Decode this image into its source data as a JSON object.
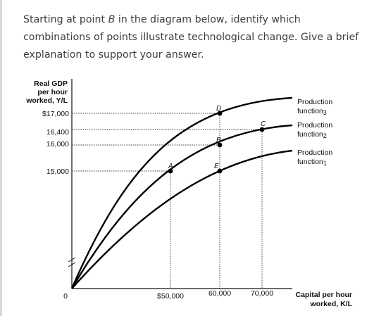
{
  "question": {
    "before": "Starting at point ",
    "point": "B",
    "after": " in the diagram below, identify which combinations of points illustrate technological change. Give a brief explanation to support your answer."
  },
  "diagram": {
    "y_axis": {
      "title_line1": "Real GDP",
      "title_line2": "per hour",
      "title_line3": "worked, Y/L",
      "ticks": [
        "$17,000",
        "16,400",
        "16,000",
        "15,000"
      ]
    },
    "x_axis": {
      "origin": "0",
      "ticks": [
        "$50,000",
        "60,000",
        "70,000"
      ],
      "title_line1": "Capital per hour",
      "title_line2": "worked, K/L"
    },
    "points": [
      "A",
      "B",
      "C",
      "D",
      "E"
    ],
    "curves": [
      {
        "name": "Production function3",
        "label_line1": "Production",
        "label_line2": "function",
        "subscript": "3"
      },
      {
        "name": "Production function2",
        "label_line1": "Production",
        "label_line2": "function",
        "subscript": "2"
      },
      {
        "name": "Production function1",
        "label_line1": "Production",
        "label_line2": "function",
        "subscript": "1"
      }
    ]
  }
}
